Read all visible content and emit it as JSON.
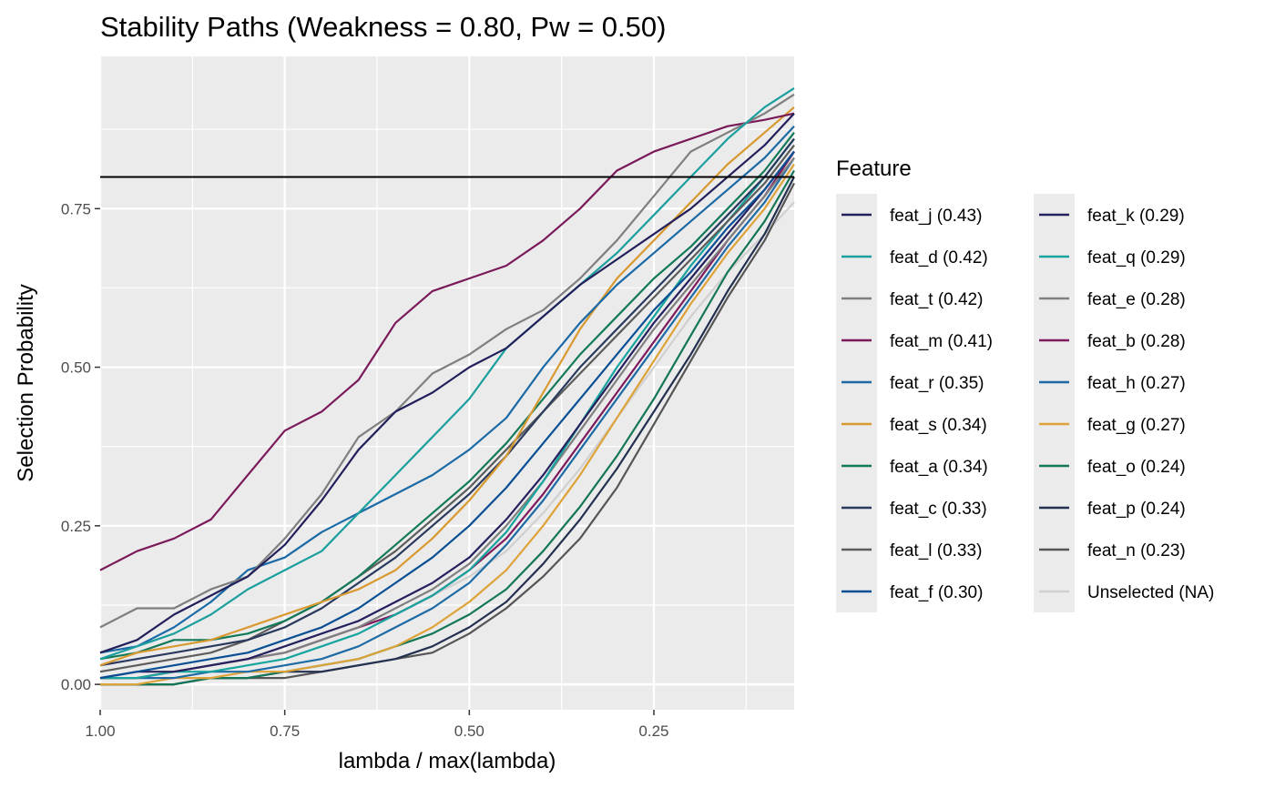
{
  "chart_data": {
    "type": "line",
    "title": "Stability Paths (Weakness = 0.80, Pw = 0.50)",
    "xlabel": "lambda / max(lambda)",
    "ylabel": "Selection Probability",
    "x_reversed": true,
    "xlim": [
      1.0,
      0.06
    ],
    "ylim": [
      -0.04,
      0.99
    ],
    "x_ticks": [
      1.0,
      0.75,
      0.5,
      0.25
    ],
    "x_tick_labels": [
      "1.00",
      "0.75",
      "0.50",
      "0.25"
    ],
    "y_ticks": [
      0.0,
      0.25,
      0.5,
      0.75
    ],
    "y_tick_labels": [
      "0.00",
      "0.25",
      "0.50",
      "0.75"
    ],
    "threshold": 0.8,
    "legend_title": "Feature",
    "legend_position": "right",
    "x": [
      1.0,
      0.95,
      0.9,
      0.85,
      0.8,
      0.75,
      0.7,
      0.65,
      0.6,
      0.55,
      0.5,
      0.45,
      0.4,
      0.35,
      0.3,
      0.25,
      0.2,
      0.15,
      0.1,
      0.06
    ],
    "series": [
      {
        "name": "feat_j",
        "label": "feat_j (0.43)",
        "color": "#22205a",
        "values": [
          0.05,
          0.07,
          0.11,
          0.14,
          0.17,
          0.22,
          0.29,
          0.37,
          0.43,
          0.46,
          0.5,
          0.53,
          0.58,
          0.63,
          0.67,
          0.71,
          0.75,
          0.8,
          0.85,
          0.9
        ]
      },
      {
        "name": "feat_d",
        "label": "feat_d (0.42)",
        "color": "#1a9f9e",
        "values": [
          0.04,
          0.06,
          0.08,
          0.11,
          0.15,
          0.18,
          0.21,
          0.27,
          0.33,
          0.39,
          0.45,
          0.53,
          0.58,
          0.63,
          0.68,
          0.74,
          0.8,
          0.86,
          0.91,
          0.94
        ]
      },
      {
        "name": "feat_t",
        "label": "feat_t (0.42)",
        "color": "#7f7f7f",
        "values": [
          0.09,
          0.12,
          0.12,
          0.15,
          0.17,
          0.23,
          0.3,
          0.39,
          0.43,
          0.49,
          0.52,
          0.56,
          0.59,
          0.64,
          0.7,
          0.77,
          0.84,
          0.87,
          0.9,
          0.93
        ]
      },
      {
        "name": "feat_m",
        "label": "feat_m (0.41)",
        "color": "#7a1a5a",
        "values": [
          0.18,
          0.21,
          0.23,
          0.26,
          0.33,
          0.4,
          0.43,
          0.48,
          0.57,
          0.62,
          0.64,
          0.66,
          0.7,
          0.75,
          0.81,
          0.84,
          0.86,
          0.88,
          0.89,
          0.9
        ]
      },
      {
        "name": "feat_r",
        "label": "feat_r (0.35)",
        "color": "#1b6aa6",
        "values": [
          0.05,
          0.06,
          0.09,
          0.13,
          0.18,
          0.2,
          0.24,
          0.27,
          0.3,
          0.33,
          0.37,
          0.42,
          0.5,
          0.57,
          0.63,
          0.68,
          0.73,
          0.78,
          0.83,
          0.88
        ]
      },
      {
        "name": "feat_s",
        "label": "feat_s (0.34)",
        "color": "#d89a30",
        "values": [
          0.03,
          0.05,
          0.06,
          0.07,
          0.09,
          0.11,
          0.13,
          0.15,
          0.18,
          0.23,
          0.29,
          0.36,
          0.46,
          0.56,
          0.64,
          0.7,
          0.76,
          0.82,
          0.87,
          0.91
        ]
      },
      {
        "name": "feat_a",
        "label": "feat_a (0.34)",
        "color": "#127a5a",
        "values": [
          0.04,
          0.05,
          0.07,
          0.07,
          0.08,
          0.1,
          0.13,
          0.17,
          0.22,
          0.27,
          0.32,
          0.38,
          0.45,
          0.52,
          0.58,
          0.64,
          0.69,
          0.75,
          0.81,
          0.87
        ]
      },
      {
        "name": "feat_c",
        "label": "feat_c (0.33)",
        "color": "#2a3a5e",
        "values": [
          0.03,
          0.04,
          0.05,
          0.06,
          0.07,
          0.09,
          0.12,
          0.16,
          0.2,
          0.25,
          0.3,
          0.36,
          0.43,
          0.5,
          0.56,
          0.62,
          0.68,
          0.74,
          0.8,
          0.86
        ]
      },
      {
        "name": "feat_l",
        "label": "feat_l (0.33)",
        "color": "#5c5c5c",
        "values": [
          0.02,
          0.03,
          0.04,
          0.05,
          0.07,
          0.1,
          0.13,
          0.17,
          0.21,
          0.26,
          0.31,
          0.37,
          0.43,
          0.49,
          0.55,
          0.61,
          0.67,
          0.73,
          0.79,
          0.85
        ]
      },
      {
        "name": "feat_f",
        "label": "feat_f (0.30)",
        "color": "#0a4f94",
        "values": [
          0.01,
          0.02,
          0.03,
          0.04,
          0.05,
          0.07,
          0.09,
          0.12,
          0.16,
          0.2,
          0.25,
          0.31,
          0.38,
          0.45,
          0.52,
          0.59,
          0.65,
          0.72,
          0.78,
          0.84
        ]
      },
      {
        "name": "feat_k",
        "label": "feat_k (0.29)",
        "color": "#25215e",
        "values": [
          0.01,
          0.02,
          0.02,
          0.03,
          0.04,
          0.06,
          0.08,
          0.1,
          0.13,
          0.16,
          0.2,
          0.26,
          0.33,
          0.41,
          0.49,
          0.57,
          0.64,
          0.71,
          0.78,
          0.84
        ]
      },
      {
        "name": "feat_q",
        "label": "feat_q (0.29)",
        "color": "#17a49e",
        "values": [
          0.01,
          0.01,
          0.02,
          0.02,
          0.03,
          0.04,
          0.06,
          0.08,
          0.11,
          0.14,
          0.18,
          0.24,
          0.32,
          0.41,
          0.5,
          0.58,
          0.66,
          0.73,
          0.8,
          0.86
        ]
      },
      {
        "name": "feat_e",
        "label": "feat_e (0.28)",
        "color": "#808080",
        "values": [
          0.01,
          0.01,
          0.02,
          0.03,
          0.04,
          0.05,
          0.07,
          0.09,
          0.12,
          0.15,
          0.19,
          0.25,
          0.32,
          0.4,
          0.48,
          0.56,
          0.63,
          0.7,
          0.77,
          0.83
        ]
      },
      {
        "name": "feat_b",
        "label": "feat_b (0.28)",
        "color": "#7f1a5e",
        "values": [
          0.01,
          0.01,
          0.02,
          0.03,
          0.04,
          0.05,
          0.07,
          0.09,
          0.11,
          0.14,
          0.18,
          0.23,
          0.3,
          0.38,
          0.46,
          0.54,
          0.62,
          0.7,
          0.77,
          0.84
        ]
      },
      {
        "name": "feat_h",
        "label": "feat_h (0.27)",
        "color": "#1d6aa5",
        "values": [
          0.01,
          0.01,
          0.01,
          0.02,
          0.02,
          0.03,
          0.04,
          0.06,
          0.09,
          0.12,
          0.16,
          0.22,
          0.29,
          0.37,
          0.45,
          0.53,
          0.61,
          0.69,
          0.76,
          0.83
        ]
      },
      {
        "name": "feat_g",
        "label": "feat_g (0.27)",
        "color": "#dea338",
        "values": [
          0.0,
          0.0,
          0.01,
          0.01,
          0.02,
          0.02,
          0.03,
          0.04,
          0.06,
          0.09,
          0.13,
          0.18,
          0.25,
          0.33,
          0.42,
          0.51,
          0.6,
          0.68,
          0.75,
          0.82
        ]
      },
      {
        "name": "feat_o",
        "label": "feat_o (0.24)",
        "color": "#137657",
        "values": [
          0.0,
          0.0,
          0.0,
          0.01,
          0.01,
          0.02,
          0.03,
          0.04,
          0.06,
          0.08,
          0.11,
          0.15,
          0.21,
          0.28,
          0.36,
          0.45,
          0.55,
          0.65,
          0.73,
          0.81
        ]
      },
      {
        "name": "feat_p",
        "label": "feat_p (0.24)",
        "color": "#233050",
        "values": [
          0.0,
          0.0,
          0.0,
          0.01,
          0.01,
          0.02,
          0.02,
          0.03,
          0.04,
          0.06,
          0.09,
          0.13,
          0.19,
          0.26,
          0.34,
          0.43,
          0.52,
          0.62,
          0.71,
          0.8
        ]
      },
      {
        "name": "feat_n",
        "label": "feat_n (0.23)",
        "color": "#555555",
        "values": [
          0.0,
          0.0,
          0.0,
          0.01,
          0.01,
          0.01,
          0.02,
          0.03,
          0.04,
          0.05,
          0.08,
          0.12,
          0.17,
          0.23,
          0.31,
          0.41,
          0.51,
          0.61,
          0.7,
          0.79
        ]
      },
      {
        "name": "Unselected",
        "label": "Unselected (NA)",
        "color": "#d0d0d0",
        "values": [
          0.01,
          0.01,
          0.02,
          0.03,
          0.04,
          0.05,
          0.07,
          0.09,
          0.11,
          0.14,
          0.17,
          0.21,
          0.27,
          0.34,
          0.42,
          0.5,
          0.58,
          0.65,
          0.71,
          0.76
        ]
      }
    ]
  }
}
